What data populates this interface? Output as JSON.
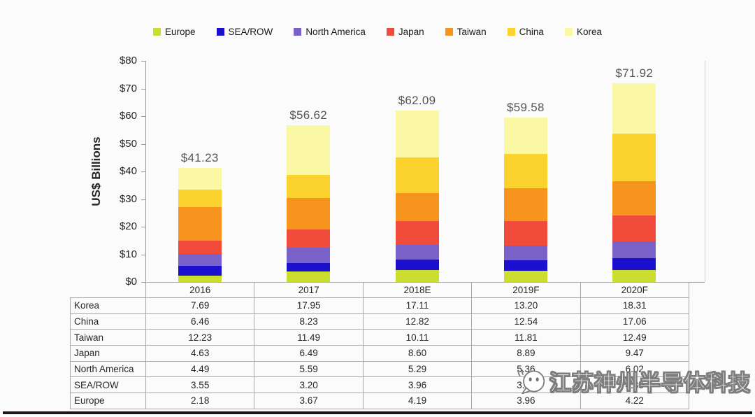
{
  "chart_data": {
    "type": "bar",
    "stacked": true,
    "ylabel": "US$ Billions",
    "ylim": [
      0,
      80
    ],
    "ytick_step": 10,
    "ytick_prefix": "$",
    "grid": false,
    "legend_position": "top",
    "categories": [
      "2016",
      "2017",
      "2018E",
      "2019F",
      "2020F"
    ],
    "series": [
      {
        "name": "Europe",
        "color": "#cbdd2e",
        "values": [
          2.18,
          3.67,
          4.19,
          3.96,
          4.22
        ]
      },
      {
        "name": "SEA/ROW",
        "color": "#1a10cd",
        "values": [
          3.55,
          3.2,
          3.96,
          3.82,
          4.35
        ]
      },
      {
        "name": "North America",
        "color": "#7a60c9",
        "values": [
          4.49,
          5.59,
          5.29,
          5.36,
          6.02
        ]
      },
      {
        "name": "Japan",
        "color": "#f14c3b",
        "values": [
          4.63,
          6.49,
          8.6,
          8.89,
          9.47
        ]
      },
      {
        "name": "Taiwan",
        "color": "#f7941e",
        "values": [
          12.23,
          11.49,
          10.11,
          11.81,
          12.49
        ]
      },
      {
        "name": "China",
        "color": "#fcd22e",
        "values": [
          6.46,
          8.23,
          12.82,
          12.54,
          17.06
        ]
      },
      {
        "name": "Korea",
        "color": "#fbf8a5",
        "values": [
          7.69,
          17.95,
          17.11,
          13.2,
          18.31
        ]
      }
    ],
    "total_labels": [
      "$41.23",
      "$56.62",
      "$62.09",
      "$59.58",
      "$71.92"
    ]
  },
  "table": {
    "columns": [
      "2016",
      "2017",
      "2018E",
      "2019F",
      "2020F"
    ],
    "rows": [
      {
        "label": "Korea",
        "values": [
          "7.69",
          "17.95",
          "17.11",
          "13.20",
          "18.31"
        ]
      },
      {
        "label": "China",
        "values": [
          "6.46",
          "8.23",
          "12.82",
          "12.54",
          "17.06"
        ]
      },
      {
        "label": "Taiwan",
        "values": [
          "12.23",
          "11.49",
          "10.11",
          "11.81",
          "12.49"
        ]
      },
      {
        "label": "Japan",
        "values": [
          "4.63",
          "6.49",
          "8.60",
          "8.89",
          "9.47"
        ]
      },
      {
        "label": "North America",
        "values": [
          "4.49",
          "5.59",
          "5.29",
          "5.36",
          "6.02"
        ]
      },
      {
        "label": "SEA/ROW",
        "values": [
          "3.55",
          "3.20",
          "3.96",
          "3.82",
          "4.35"
        ]
      },
      {
        "label": "Europe",
        "values": [
          "2.18",
          "3.67",
          "4.19",
          "3.96",
          "4.22"
        ]
      }
    ]
  },
  "watermark": {
    "text": "江苏神州半导体科技"
  }
}
